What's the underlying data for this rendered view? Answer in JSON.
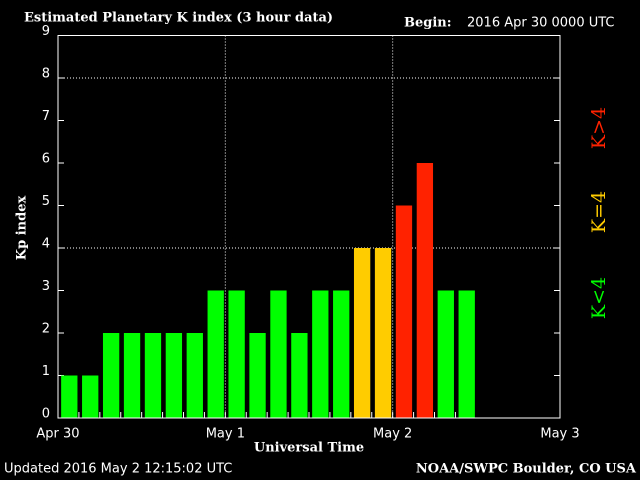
{
  "chart_data": {
    "type": "bar",
    "title": "Estimated Planetary K index (3 hour data)",
    "begin_label": "Begin:",
    "begin": "2016 Apr 30 0000 UTC",
    "y_label": "Kp index",
    "x_label": "Universal Time",
    "updated": "Updated 2016 May  2 12:15:02 UTC",
    "source": "NOAA/SWPC Boulder, CO USA",
    "x": [
      0,
      0.125,
      0.25,
      0.375,
      0.5,
      0.625,
      0.75,
      0.875,
      1,
      1.125,
      1.25,
      1.375,
      1.5,
      1.625,
      1.75,
      1.875,
      2,
      2.125,
      2.25,
      2.375
    ],
    "values": [
      1,
      1,
      2,
      2,
      2,
      2,
      2,
      3,
      3,
      2,
      3,
      2,
      3,
      3,
      4,
      4,
      5,
      6,
      3,
      3
    ],
    "colors": [
      "#00ff00",
      "#00ff00",
      "#00ff00",
      "#00ff00",
      "#00ff00",
      "#00ff00",
      "#00ff00",
      "#00ff00",
      "#00ff00",
      "#00ff00",
      "#00ff00",
      "#00ff00",
      "#00ff00",
      "#00ff00",
      "#ffcc00",
      "#ffcc00",
      "#ff2200",
      "#ff2200",
      "#00ff00",
      "#00ff00"
    ],
    "xlim": [
      0,
      3
    ],
    "xticks": [
      {
        "value": 0,
        "label": "Apr 30"
      },
      {
        "value": 1,
        "label": "May 1"
      },
      {
        "value": 2,
        "label": "May 2"
      },
      {
        "value": 3,
        "label": "May 3"
      }
    ],
    "ylim": [
      0,
      9
    ],
    "yticks": [
      0,
      1,
      2,
      3,
      4,
      5,
      6,
      7,
      8,
      9
    ],
    "ygrid": [
      4,
      8
    ],
    "legend": [
      {
        "label": "K<4",
        "color": "#00ff00"
      },
      {
        "label": "K=4",
        "color": "#ffcc00"
      },
      {
        "label": "K>4",
        "color": "#ff2200"
      }
    ]
  }
}
